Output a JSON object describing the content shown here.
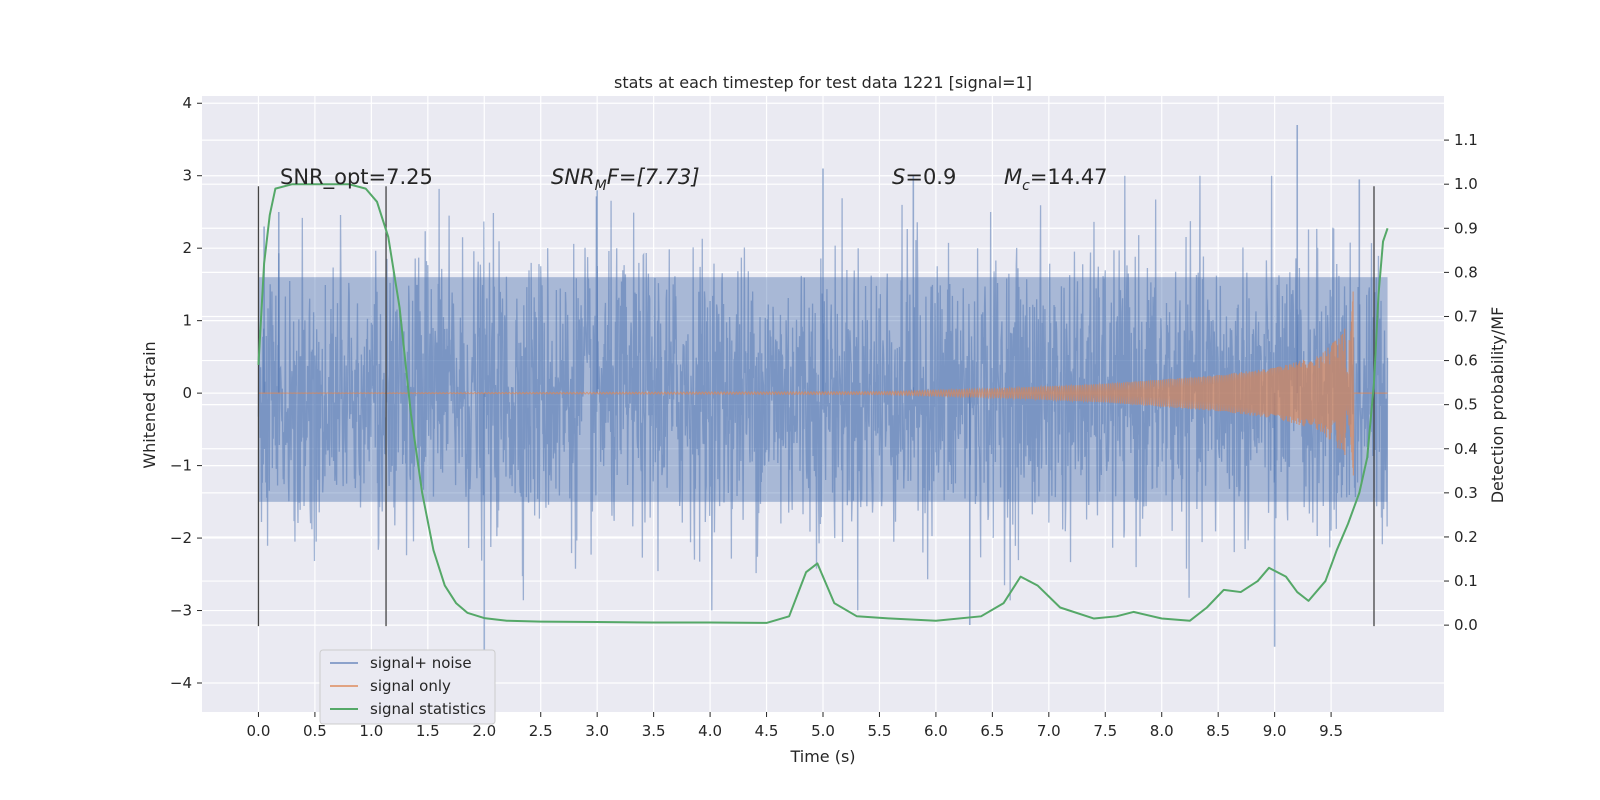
{
  "chart_data": {
    "type": "line",
    "title": "stats at each timestep for test data 1221 [signal=1]",
    "xlabel": "Time (s)",
    "ylabel_left": "Whitened strain",
    "ylabel_right": "Detection probability/MF",
    "xlim": [
      -0.5,
      10.5
    ],
    "ylim_left": [
      -4.4,
      4.1
    ],
    "ylim_right": [
      -0.197,
      1.2
    ],
    "x_ticks": [
      "0.0",
      "0.5",
      "1.0",
      "1.5",
      "2.0",
      "2.5",
      "3.0",
      "3.5",
      "4.0",
      "4.5",
      "5.0",
      "5.5",
      "6.0",
      "6.5",
      "7.0",
      "7.5",
      "8.0",
      "8.5",
      "9.0",
      "9.5"
    ],
    "y_ticks_left": [
      "4",
      "3",
      "2",
      "1",
      "0",
      "−1",
      "−2",
      "−3",
      "−4"
    ],
    "y_ticks_right": [
      "1.1",
      "1.0",
      "0.9",
      "0.8",
      "0.7",
      "0.6",
      "0.5",
      "0.4",
      "0.3",
      "0.2",
      "0.1",
      "0.0"
    ],
    "grid": true,
    "background": "#eaeaf2",
    "annotations": {
      "snr_opt": "SNR_opt=7.25",
      "snr_mf_main": "SNR",
      "snr_mf_sub": "M",
      "snr_mf_rest": "F=[7.73]",
      "s_main": "S",
      "s_rest": "=0.9",
      "mc_main": "M",
      "mc_sub": "c",
      "mc_rest": "=14.47"
    },
    "vertical_markers_x": [
      0.0,
      1.13,
      9.88
    ],
    "legend": {
      "position": "lower-left",
      "entries": [
        "signal+ noise",
        "signal only",
        "signal statistics"
      ]
    },
    "series": [
      {
        "name": "signal+ noise",
        "color": "#4c72b0",
        "opacity": 0.5,
        "x_range": [
          0.0,
          10.0
        ],
        "envelope_typical": [
          -1.5,
          1.6
        ],
        "extremes": [
          [
            0.05,
            2.3
          ],
          [
            0.18,
            2.5
          ],
          [
            2.0,
            -3.6
          ],
          [
            3.0,
            2.8
          ],
          [
            5.0,
            3.1
          ],
          [
            5.8,
            3.0
          ],
          [
            9.2,
            3.7
          ],
          [
            9.0,
            -3.5
          ],
          [
            6.3,
            -3.2
          ],
          [
            9.75,
            2.95
          ]
        ]
      },
      {
        "name": "signal only",
        "color": "#dd8452",
        "note_points": [
          [
            0.0,
            0.0
          ],
          [
            5.5,
            0.02
          ],
          [
            6.5,
            0.06
          ],
          [
            7.5,
            0.13
          ],
          [
            8.5,
            0.25
          ],
          [
            9.0,
            0.35
          ],
          [
            9.4,
            0.52
          ],
          [
            9.6,
            0.82
          ],
          [
            9.68,
            1.1
          ],
          [
            9.7,
            -0.85
          ],
          [
            9.72,
            0.0
          ],
          [
            10.0,
            0.0
          ]
        ]
      },
      {
        "name": "signal statistics",
        "color": "#55a868",
        "axis": "right",
        "points": [
          [
            0.0,
            0.59
          ],
          [
            0.05,
            0.82
          ],
          [
            0.1,
            0.93
          ],
          [
            0.15,
            0.99
          ],
          [
            0.3,
            1.0
          ],
          [
            0.5,
            1.0
          ],
          [
            0.8,
            1.0
          ],
          [
            0.95,
            0.99
          ],
          [
            1.05,
            0.96
          ],
          [
            1.15,
            0.88
          ],
          [
            1.25,
            0.72
          ],
          [
            1.35,
            0.48
          ],
          [
            1.45,
            0.3
          ],
          [
            1.55,
            0.17
          ],
          [
            1.65,
            0.09
          ],
          [
            1.75,
            0.05
          ],
          [
            1.85,
            0.028
          ],
          [
            2.0,
            0.016
          ],
          [
            2.2,
            0.01
          ],
          [
            2.5,
            0.008
          ],
          [
            3.0,
            0.007
          ],
          [
            3.5,
            0.006
          ],
          [
            4.0,
            0.006
          ],
          [
            4.5,
            0.005
          ],
          [
            4.7,
            0.02
          ],
          [
            4.85,
            0.12
          ],
          [
            4.95,
            0.14
          ],
          [
            5.1,
            0.05
          ],
          [
            5.3,
            0.02
          ],
          [
            5.6,
            0.015
          ],
          [
            6.0,
            0.01
          ],
          [
            6.4,
            0.02
          ],
          [
            6.6,
            0.05
          ],
          [
            6.75,
            0.11
          ],
          [
            6.9,
            0.09
          ],
          [
            7.1,
            0.04
          ],
          [
            7.4,
            0.015
          ],
          [
            7.6,
            0.02
          ],
          [
            7.75,
            0.03
          ],
          [
            8.0,
            0.015
          ],
          [
            8.25,
            0.01
          ],
          [
            8.4,
            0.04
          ],
          [
            8.55,
            0.08
          ],
          [
            8.7,
            0.075
          ],
          [
            8.85,
            0.1
          ],
          [
            8.95,
            0.13
          ],
          [
            9.1,
            0.11
          ],
          [
            9.2,
            0.075
          ],
          [
            9.3,
            0.055
          ],
          [
            9.45,
            0.1
          ],
          [
            9.55,
            0.17
          ],
          [
            9.65,
            0.23
          ],
          [
            9.75,
            0.3
          ],
          [
            9.82,
            0.38
          ],
          [
            9.88,
            0.55
          ],
          [
            9.92,
            0.75
          ],
          [
            9.96,
            0.87
          ],
          [
            10.0,
            0.9
          ]
        ]
      }
    ]
  }
}
